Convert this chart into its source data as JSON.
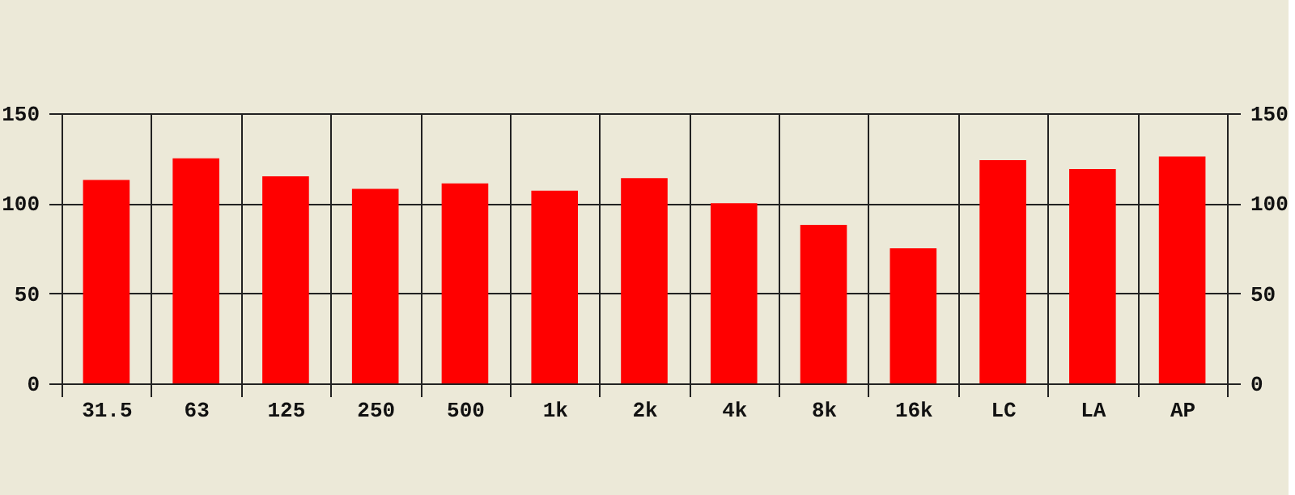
{
  "chart_data": {
    "type": "bar",
    "categories": [
      "31.5",
      "63",
      "125",
      "250",
      "500",
      "1k",
      "2k",
      "4k",
      "8k",
      "16k",
      "LC",
      "LA",
      "AP"
    ],
    "values": [
      113,
      125,
      115,
      108,
      111,
      107,
      114,
      100,
      88,
      75,
      124,
      119,
      126
    ],
    "color": "#ff0000",
    "ylim": [
      0,
      150
    ],
    "yticks": [
      0,
      50,
      100,
      150
    ],
    "y2lim": [
      0,
      150
    ],
    "y2ticks": [
      0,
      50,
      100,
      150
    ],
    "grid": true
  }
}
